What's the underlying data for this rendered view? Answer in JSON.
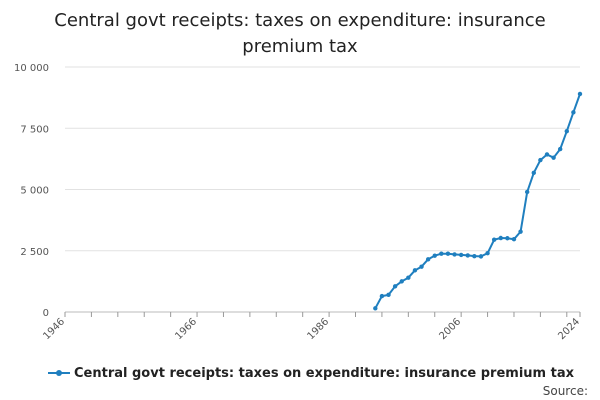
{
  "chart_data": {
    "type": "line",
    "title_lines": [
      "Central govt receipts: taxes on expenditure: insurance",
      "premium tax"
    ],
    "x_ticks": [
      "1946",
      "1966",
      "1986",
      "2006",
      "2024"
    ],
    "y_ticks": [
      "0",
      "2 500",
      "5 000",
      "7 500",
      "10 000"
    ],
    "xlim": [
      1946,
      2024
    ],
    "ylim": [
      0,
      10000
    ],
    "series": [
      {
        "name": "Central govt receipts: taxes on expenditure: insurance premium tax",
        "color": "#1f7fbf",
        "x": [
          1993,
          1994,
          1995,
          1996,
          1997,
          1998,
          1999,
          2000,
          2001,
          2002,
          2003,
          2004,
          2005,
          2006,
          2007,
          2008,
          2009,
          2010,
          2011,
          2012,
          2013,
          2014,
          2015,
          2016,
          2017,
          2018,
          2019,
          2020,
          2021,
          2022,
          2023,
          2024
        ],
        "values": [
          150,
          650,
          700,
          1050,
          1250,
          1400,
          1700,
          1850,
          2150,
          2300,
          2380,
          2380,
          2350,
          2330,
          2310,
          2280,
          2270,
          2400,
          2950,
          3020,
          3010,
          2970,
          3280,
          4900,
          5680,
          6200,
          6430,
          6300,
          6650,
          7380,
          8150,
          8900
        ]
      }
    ]
  },
  "legend_label": "Central govt receipts: taxes on expenditure: insurance premium tax",
  "source_label": "Source:"
}
